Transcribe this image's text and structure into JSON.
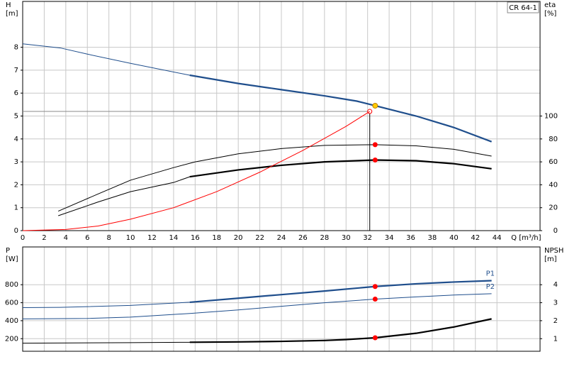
{
  "chart_data": [
    {
      "type": "line",
      "model": "CR 64-1",
      "x_label": "Q [m³/h]",
      "y_label": "H",
      "y_unit": "[m]",
      "y2_label": "eta",
      "y2_unit": "[%]",
      "xlim": [
        0,
        48
      ],
      "xticks": [
        0,
        2,
        4,
        6,
        8,
        10,
        12,
        14,
        16,
        18,
        20,
        22,
        24,
        26,
        28,
        30,
        32,
        34,
        36,
        38,
        40,
        42,
        44
      ],
      "ylim": [
        0,
        10
      ],
      "yticks": [
        0,
        1,
        2,
        3,
        4,
        5,
        6,
        7,
        8
      ],
      "y2lim": [
        0,
        200
      ],
      "y2ticks": [
        0,
        20,
        40,
        60,
        80,
        100
      ],
      "grid": true,
      "bold_from_x": 15.5,
      "duty_x": 32.7,
      "system_point": {
        "x": 32.2,
        "y": 5.2
      },
      "series": [
        {
          "color": "#1f4e8c",
          "marker_color": "#ffcc00",
          "axis": "y",
          "thin": false,
          "x": [
            0,
            3.5,
            6,
            10,
            15.5,
            20,
            24,
            28,
            31,
            32.7,
            36.5,
            40,
            43.5
          ],
          "values": [
            8.15,
            7.97,
            7.7,
            7.3,
            6.78,
            6.42,
            6.15,
            5.88,
            5.65,
            5.45,
            5.0,
            4.5,
            3.88
          ]
        },
        {
          "color": "#000000",
          "marker_color": "#ff0000",
          "axis": "y2",
          "thin": true,
          "x": [
            3.3,
            7,
            10,
            14,
            16,
            20,
            24,
            28,
            32.7,
            36.5,
            40,
            43.5
          ],
          "values": [
            17,
            32,
            44,
            55,
            60,
            67,
            71.6,
            74.4,
            75,
            74,
            71,
            65
          ]
        },
        {
          "color": "#000000",
          "marker_color": "#ff0000",
          "axis": "y2",
          "thin": false,
          "x": [
            3.3,
            7,
            10,
            14,
            15.5,
            20,
            24,
            28,
            32.7,
            36.5,
            40,
            43.5
          ],
          "values": [
            13,
            25,
            34,
            42,
            47,
            53,
            57,
            60,
            61.6,
            61,
            58.4,
            54
          ]
        },
        {
          "color": "#ff0000",
          "axis": "y",
          "thin": true,
          "x": [
            0,
            4,
            7,
            10,
            14,
            18,
            22,
            26,
            30,
            32.2
          ],
          "values": [
            0,
            0.05,
            0.2,
            0.5,
            1.0,
            1.7,
            2.55,
            3.5,
            4.55,
            5.2
          ]
        }
      ]
    },
    {
      "type": "line",
      "y_label": "P",
      "y_unit": "[W]",
      "y2_label": "NPSH",
      "y2_unit": "[m]",
      "xlim": [
        0,
        48
      ],
      "xticks": [
        0,
        2,
        4,
        6,
        8,
        10,
        12,
        14,
        16,
        18,
        20,
        22,
        24,
        26,
        28,
        30,
        32,
        34,
        36,
        38,
        40,
        42,
        44
      ],
      "ylim": [
        60,
        1220
      ],
      "yticks": [
        200,
        400,
        600,
        800
      ],
      "y2lim": [
        0.3,
        6.1
      ],
      "y2ticks": [
        1,
        2,
        3,
        4
      ],
      "grid": true,
      "bold_from_x": 15.5,
      "duty_x": 32.7,
      "series": [
        {
          "name": "P1",
          "color": "#1f4e8c",
          "marker_color": "#ff0000",
          "axis": "y",
          "thin": false,
          "x": [
            0,
            3.5,
            10,
            15.5,
            20,
            24,
            28,
            32.7,
            36.5,
            40,
            43.5
          ],
          "values": [
            545,
            548,
            570,
            605,
            650,
            690,
            730,
            780,
            810,
            830,
            845
          ]
        },
        {
          "name": "P2",
          "color": "#1f4e8c",
          "marker_color": "#ff0000",
          "axis": "y",
          "thin": true,
          "x": [
            0,
            6,
            10,
            15.5,
            20,
            24,
            28,
            32.7,
            36.5,
            40,
            43.5
          ],
          "values": [
            420,
            425,
            440,
            480,
            520,
            560,
            600,
            640,
            665,
            685,
            700
          ]
        },
        {
          "color": "#000000",
          "marker_color": "#ff0000",
          "axis": "y2",
          "thin": false,
          "x": [
            0,
            10,
            15.5,
            20,
            24,
            28,
            30,
            32.7,
            36.5,
            40,
            43.5
          ],
          "values": [
            0.75,
            0.78,
            0.8,
            0.82,
            0.85,
            0.9,
            0.95,
            1.05,
            1.3,
            1.65,
            2.1
          ]
        }
      ]
    }
  ]
}
